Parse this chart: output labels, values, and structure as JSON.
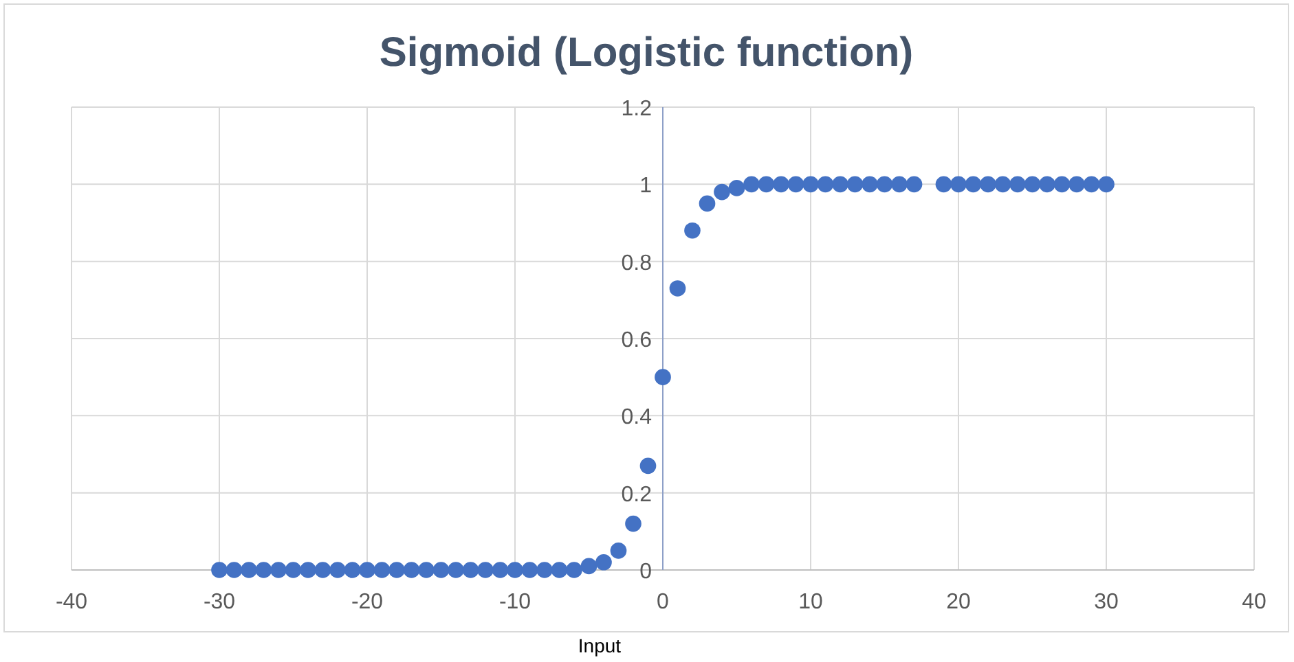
{
  "chart_data": {
    "type": "scatter",
    "title": "Sigmoid (Logistic function)",
    "xlabel": "Input",
    "x": [
      -30,
      -29,
      -28,
      -27,
      -26,
      -25,
      -24,
      -23,
      -22,
      -21,
      -20,
      -19,
      -18,
      -17,
      -16,
      -15,
      -14,
      -13,
      -12,
      -11,
      -10,
      -9,
      -8,
      -7,
      -6,
      -5,
      -4,
      -3,
      -2,
      -1,
      0,
      1,
      2,
      3,
      4,
      5,
      6,
      7,
      8,
      9,
      10,
      11,
      12,
      13,
      14,
      15,
      16,
      17,
      19,
      20,
      21,
      22,
      23,
      24,
      25,
      26,
      27,
      28,
      29,
      30
    ],
    "values": [
      0,
      0,
      0,
      0,
      0,
      0,
      0,
      0,
      0,
      0,
      0,
      0,
      0,
      0,
      0,
      0,
      0,
      0,
      0,
      0,
      0,
      0,
      0,
      0,
      0,
      0.01,
      0.02,
      0.05,
      0.12,
      0.27,
      0.5,
      0.73,
      0.88,
      0.95,
      0.98,
      0.99,
      1,
      1,
      1,
      1,
      1,
      1,
      1,
      1,
      1,
      1,
      1,
      1,
      1,
      1,
      1,
      1,
      1,
      1,
      1,
      1,
      1,
      1,
      1,
      1
    ],
    "color": "#4472c4",
    "marker": "circle",
    "grid": true,
    "xlim": [
      -40,
      40
    ],
    "xticks": [
      -40,
      -30,
      -20,
      -10,
      0,
      10,
      20,
      30,
      40
    ],
    "ylim": [
      0,
      1.2
    ],
    "yticks": [
      0,
      0.2,
      0.4,
      0.6,
      0.8,
      1,
      1.2
    ]
  }
}
